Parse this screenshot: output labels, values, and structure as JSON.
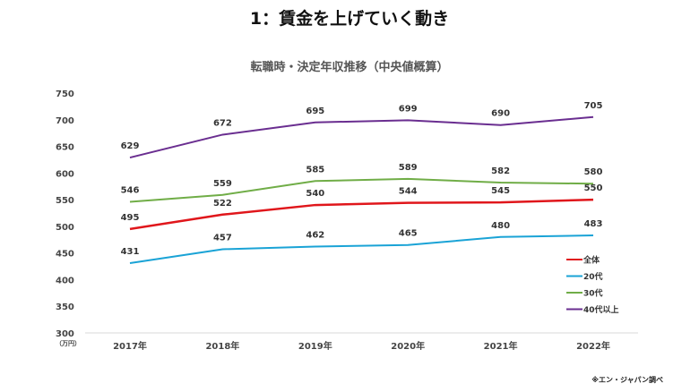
{
  "title": "1：賃金を上げていく動き",
  "note": "※エン・ジャパン調べ",
  "chart_data": {
    "type": "line",
    "title": "転職時・決定年収推移（中央値概算）",
    "ylabel": "（万円）",
    "categories": [
      "2017年",
      "2018年",
      "2019年",
      "2020年",
      "2021年",
      "2022年"
    ],
    "ylim": [
      300,
      750
    ],
    "yticks": [
      300,
      350,
      400,
      450,
      500,
      550,
      600,
      650,
      700,
      750
    ],
    "grid": false,
    "legend_position": "right",
    "series": [
      {
        "name": "全体",
        "color": "#e0161b",
        "values": [
          495,
          522,
          540,
          544,
          545,
          550
        ]
      },
      {
        "name": "20代",
        "color": "#1aa3d6",
        "values": [
          431,
          457,
          462,
          465,
          480,
          483
        ]
      },
      {
        "name": "30代",
        "color": "#70ad47",
        "values": [
          546,
          559,
          585,
          589,
          582,
          580
        ]
      },
      {
        "name": "40代以上",
        "color": "#6a2e90",
        "values": [
          629,
          672,
          695,
          699,
          690,
          705
        ]
      }
    ]
  }
}
